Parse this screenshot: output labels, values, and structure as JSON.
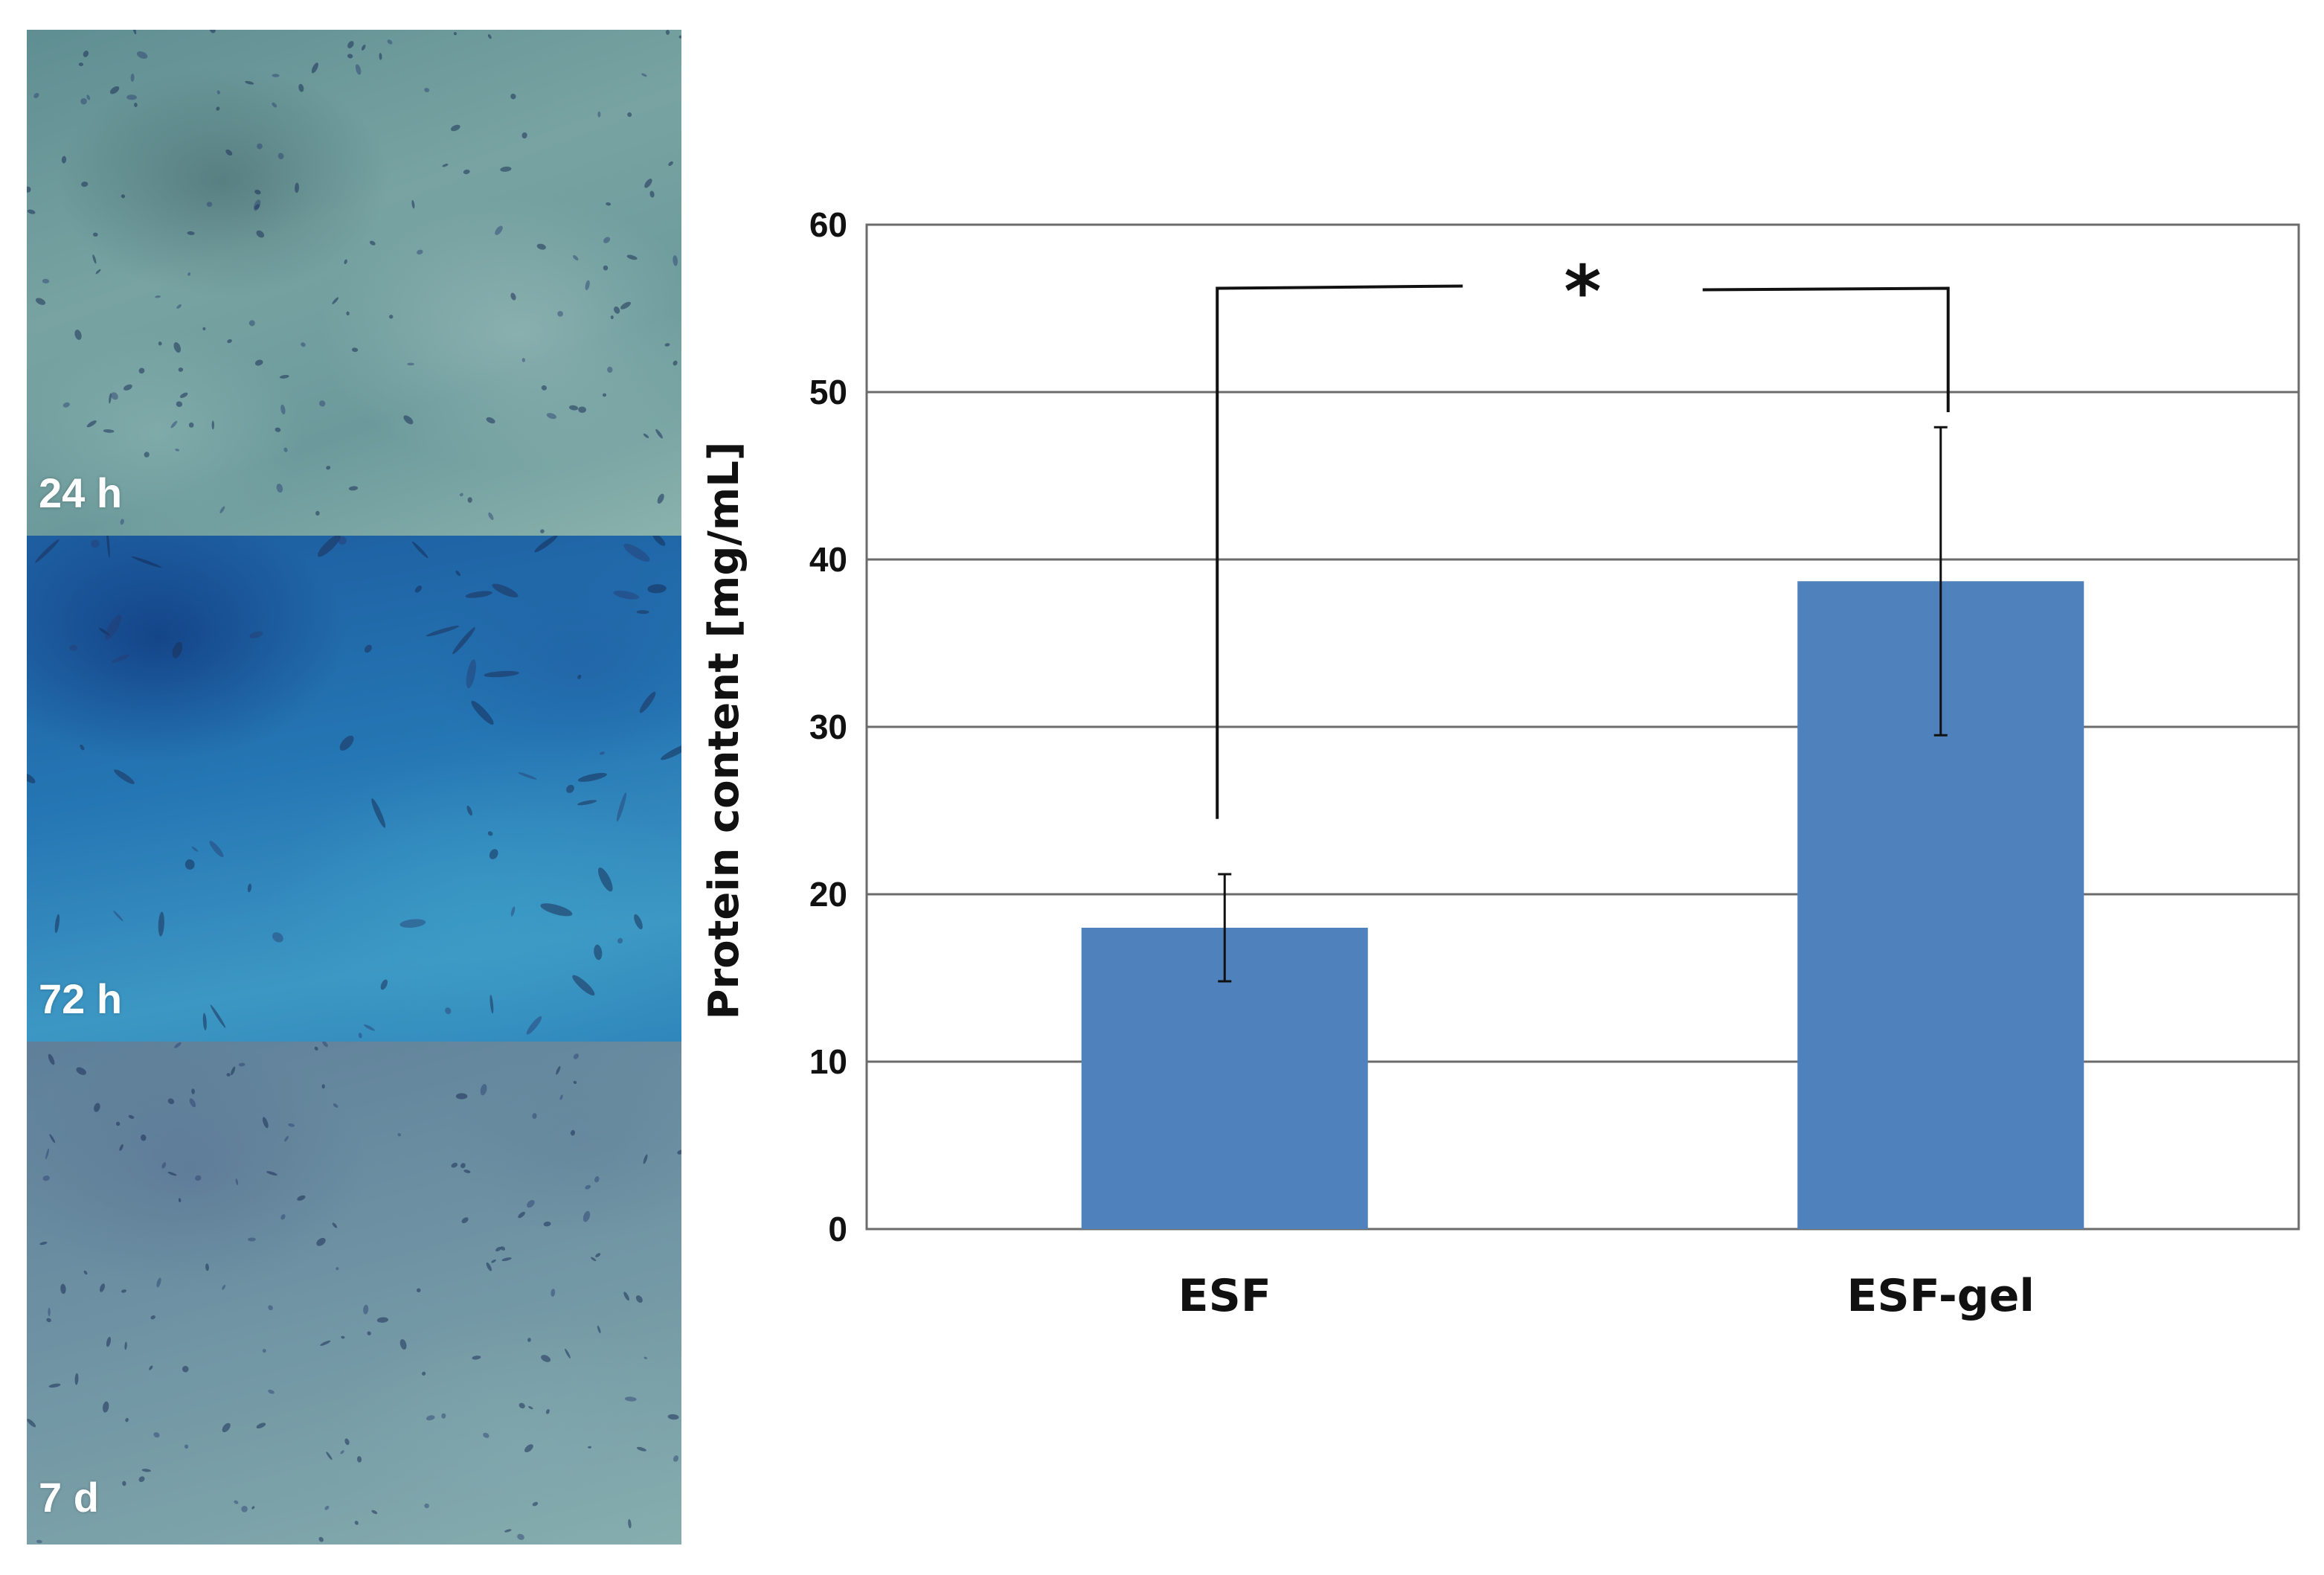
{
  "panels": [
    {
      "label": "24 h"
    },
    {
      "label": "72 h"
    },
    {
      "label": "7 d"
    }
  ],
  "chart_data": {
    "type": "bar",
    "categories": [
      "ESF",
      "ESF-gel"
    ],
    "values": [
      18.0,
      38.7
    ],
    "error": [
      3.2,
      9.2
    ],
    "title": "",
    "xlabel": "",
    "ylabel": "Protein content [mg/mL]",
    "ylim": [
      0,
      60
    ],
    "yticks": [
      0,
      10,
      20,
      30,
      40,
      50,
      60
    ],
    "grid": true,
    "bar_color": "#4f81bd",
    "significance": {
      "between": [
        "ESF",
        "ESF-gel"
      ],
      "label": "*"
    }
  }
}
